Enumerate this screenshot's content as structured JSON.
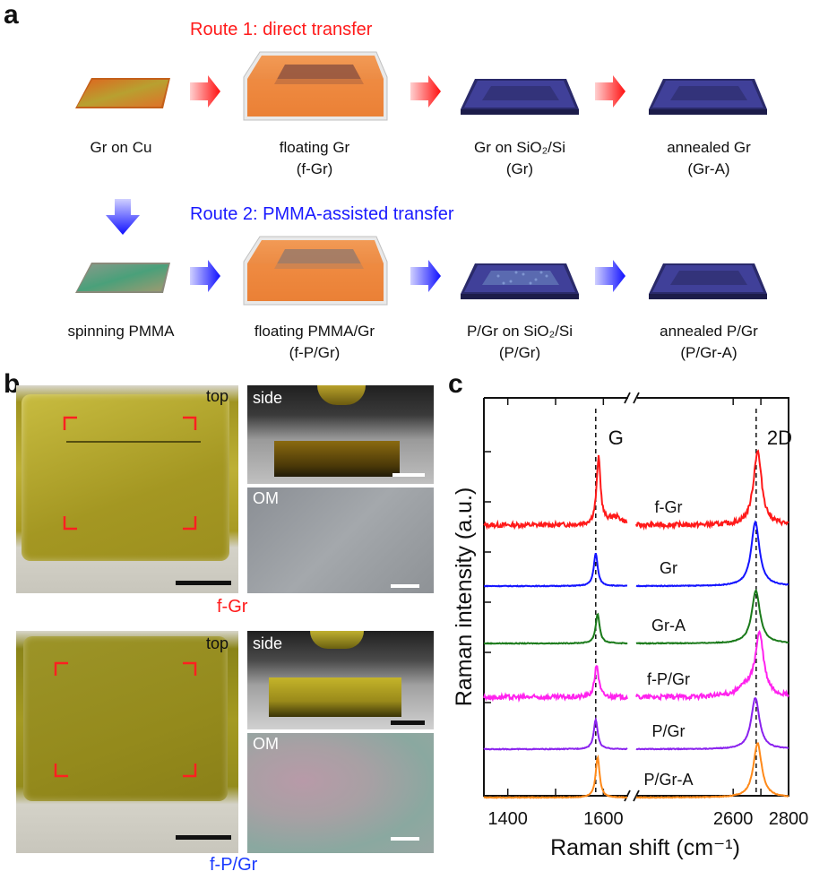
{
  "panels": {
    "a": "a",
    "b": "b",
    "c": "c"
  },
  "route1": {
    "title": "Route 1: direct transfer",
    "steps": [
      {
        "line1": "Gr on Cu",
        "line2": ""
      },
      {
        "line1": "floating Gr",
        "line2": "(f-Gr)"
      },
      {
        "line1": "Gr on SiO₂/Si",
        "line2": "(Gr)"
      },
      {
        "line1": "annealed Gr",
        "line2": "(Gr-A)"
      }
    ]
  },
  "route2": {
    "title": "Route 2: PMMA-assisted transfer",
    "steps": [
      {
        "line1": "spinning PMMA",
        "line2": ""
      },
      {
        "line1": "floating PMMA/Gr",
        "line2": "(f-P/Gr)"
      },
      {
        "line1": "P/Gr on SiO₂/Si",
        "line2": "(P/Gr)"
      },
      {
        "line1": "annealed P/Gr",
        "line2": "(P/Gr-A)"
      }
    ]
  },
  "panel_b": {
    "top_label": "top",
    "side_label": "side",
    "om_label": "OM",
    "sample1": "f-Gr",
    "sample2": "f-P/Gr"
  },
  "colors": {
    "route1": "#ff1a1a",
    "route2": "#1a1aff",
    "cu": "#d9722a",
    "water": "#e8803a",
    "sio2": "#3a3a8a",
    "gel": "#a09420"
  },
  "chart_data": {
    "type": "line",
    "xlabel": "Raman shift (cm⁻¹)",
    "ylabel": "Raman intensity (a.u.)",
    "x_axis_break": true,
    "x_ticks": [
      "1400",
      "1600",
      "2600",
      "2800"
    ],
    "grid": false,
    "peak_labels": [
      "G",
      "2D"
    ],
    "reference_lines_cm1": [
      1584,
      2683
    ],
    "series": [
      {
        "name": "f-Gr",
        "color": "#ff1a1a",
        "baseline": 0.0,
        "G_pos": 1590,
        "G_height": 0.85,
        "twoD_pos": 2688,
        "twoD_height": 0.95
      },
      {
        "name": "Gr",
        "color": "#1414ff",
        "baseline": 0.0,
        "G_pos": 1584,
        "G_height": 0.42,
        "twoD_pos": 2680,
        "twoD_height": 0.82
      },
      {
        "name": "Gr-A",
        "color": "#1a7a1a",
        "baseline": 0.0,
        "G_pos": 1588,
        "G_height": 0.38,
        "twoD_pos": 2682,
        "twoD_height": 0.68
      },
      {
        "name": "f-P/Gr",
        "color": "#ff22ee",
        "baseline": 0.0,
        "G_pos": 1586,
        "G_height": 0.42,
        "twoD_pos": 2695,
        "twoD_height": 0.78
      },
      {
        "name": "P/Gr",
        "color": "#8a22ee",
        "baseline": 0.0,
        "G_pos": 1584,
        "G_height": 0.38,
        "twoD_pos": 2680,
        "twoD_height": 0.66
      },
      {
        "name": "P/Gr-A",
        "color": "#ff8a1a",
        "baseline": 0.0,
        "G_pos": 1588,
        "G_height": 0.52,
        "twoD_pos": 2688,
        "twoD_height": 0.7
      }
    ]
  }
}
